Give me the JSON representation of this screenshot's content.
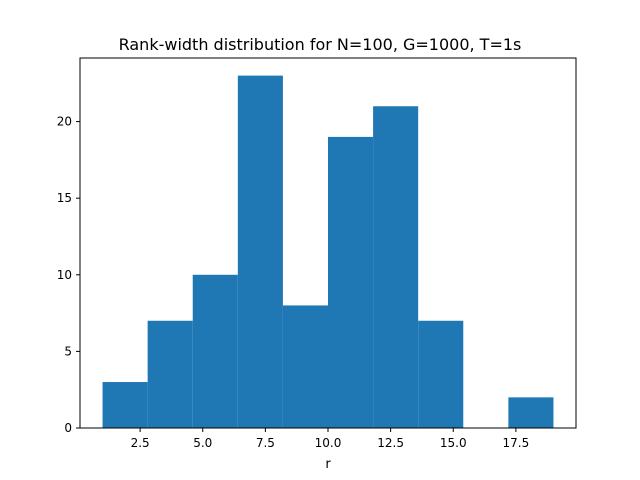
{
  "chart_data": {
    "type": "bar",
    "title": "Rank-width distribution for N=100, G=1000, T=1s",
    "xlabel": "r",
    "ylabel": "",
    "bin_edges": [
      1.0,
      2.8,
      4.6,
      6.4,
      8.2,
      10.0,
      11.8,
      13.6,
      15.4,
      17.2,
      19.0
    ],
    "values": [
      3,
      7,
      10,
      23,
      8,
      19,
      21,
      7,
      0,
      2
    ],
    "xlim": [
      0.1,
      19.9
    ],
    "ylim": [
      0,
      24.15
    ],
    "xticks": [
      2.5,
      5.0,
      7.5,
      10.0,
      12.5,
      15.0,
      17.5
    ],
    "xtick_labels": [
      "2.5",
      "5.0",
      "7.5",
      "10.0",
      "12.5",
      "15.0",
      "17.5"
    ],
    "yticks": [
      0,
      5,
      10,
      15,
      20
    ],
    "ytick_labels": [
      "0",
      "5",
      "10",
      "15",
      "20"
    ],
    "bar_color": "#1f77b4",
    "grid": false,
    "legend": "none"
  }
}
